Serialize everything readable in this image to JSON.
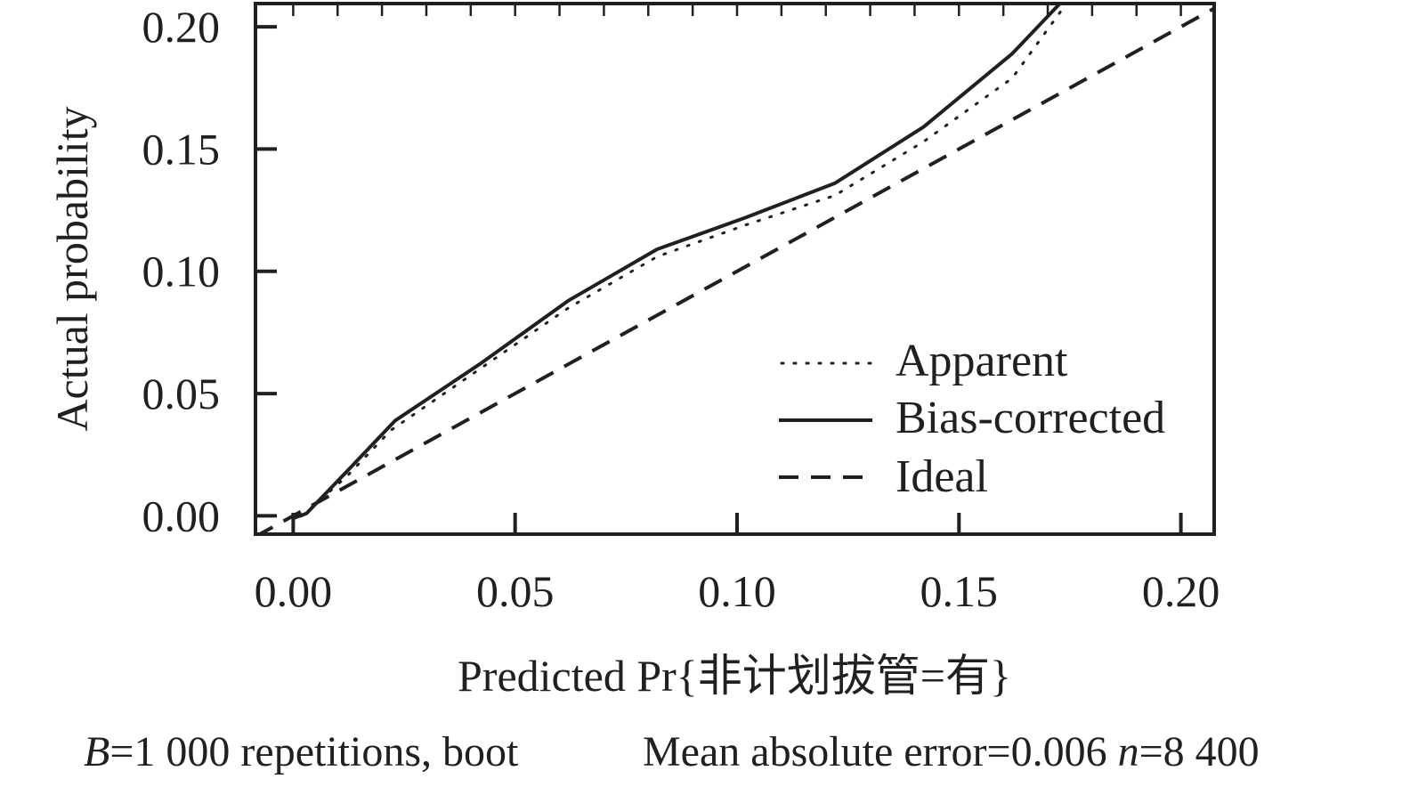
{
  "chart_data": {
    "type": "line",
    "xlabel": "Predicted Pr{非计划拔管=有}",
    "ylabel": "Actual probability",
    "xlim": [
      -0.0085,
      0.2075
    ],
    "ylim": [
      -0.0075,
      0.2095
    ],
    "x_ticks": [
      0.0,
      0.05,
      0.1,
      0.15,
      0.2
    ],
    "y_ticks": [
      0.0,
      0.05,
      0.1,
      0.15,
      0.2
    ],
    "x_tick_labels": [
      "0.00",
      "0.05",
      "0.10",
      "0.15",
      "0.20"
    ],
    "y_tick_labels": [
      "0.00",
      "0.05",
      "0.10",
      "0.15",
      "0.20"
    ],
    "minor_ticks_top": true,
    "grid": false,
    "legend_position": "bottom-right",
    "series": [
      {
        "name": "Apparent",
        "style": "dotted",
        "color": "#231f20",
        "points": [
          [
            0.002,
            0.0
          ],
          [
            0.012,
            0.016
          ],
          [
            0.022,
            0.035
          ],
          [
            0.042,
            0.06
          ],
          [
            0.062,
            0.085
          ],
          [
            0.082,
            0.106
          ],
          [
            0.102,
            0.119
          ],
          [
            0.122,
            0.131
          ],
          [
            0.142,
            0.153
          ],
          [
            0.162,
            0.179
          ],
          [
            0.174,
            0.209
          ]
        ]
      },
      {
        "name": "Bias-corrected",
        "style": "solid",
        "color": "#231f20",
        "points": [
          [
            0.0,
            -0.001
          ],
          [
            0.003,
            0.001
          ],
          [
            0.012,
            0.018
          ],
          [
            0.023,
            0.039
          ],
          [
            0.042,
            0.062
          ],
          [
            0.062,
            0.088
          ],
          [
            0.082,
            0.109
          ],
          [
            0.102,
            0.122
          ],
          [
            0.122,
            0.136
          ],
          [
            0.142,
            0.159
          ],
          [
            0.162,
            0.189
          ],
          [
            0.173,
            0.21
          ]
        ]
      },
      {
        "name": "Ideal",
        "style": "dashed",
        "color": "#231f20",
        "points": [
          [
            -0.0085,
            -0.0085
          ],
          [
            0.2075,
            0.2075
          ]
        ]
      }
    ],
    "annotation": {
      "b_italic": "B",
      "b_rest": "=1 000 repetitions, boot",
      "mae": "Mean absolute error=0.006 ",
      "n_italic": "n",
      "n_rest": "=8 400"
    }
  }
}
